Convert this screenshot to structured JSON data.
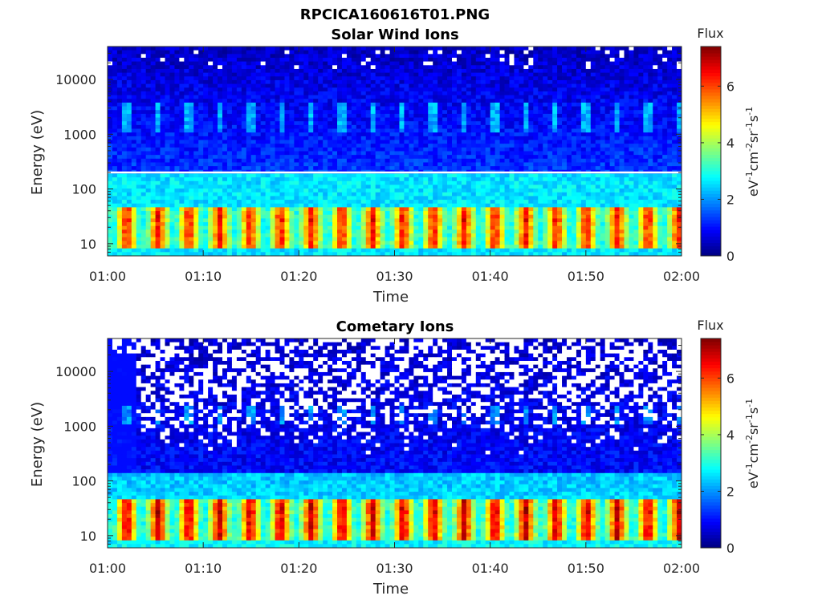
{
  "figure": {
    "title": "RPCICA160616T01.PNG"
  },
  "chart_data": [
    {
      "type": "heatmap",
      "title": "Solar Wind Ions",
      "xlabel": "Time",
      "ylabel": "Energy (eV)",
      "y_scale": "log",
      "ylim": [
        6,
        40000
      ],
      "x_ticks": [
        "01:00",
        "01:10",
        "01:20",
        "01:30",
        "01:40",
        "01:50",
        "02:00"
      ],
      "y_ticks": [
        "10",
        "100",
        "1000",
        "10000"
      ],
      "x_range": [
        "01:00",
        "02:00"
      ],
      "cycle_start_minutes": [
        1.7,
        5.0,
        8.2,
        11.4,
        14.6,
        17.8,
        21.0,
        24.2,
        27.4,
        30.6,
        33.8,
        37.0,
        40.2,
        43.4,
        46.6,
        49.8,
        53.0,
        56.2,
        59.4
      ],
      "colorbar": {
        "label": "Flux",
        "units": "eV-1cm-2sr-1s-1",
        "ticks": [
          "0",
          "2",
          "4",
          "6"
        ],
        "range": [
          0,
          7.4
        ],
        "colormap": "jet"
      },
      "features": {
        "low_energy_band_eV": [
          10,
          40
        ],
        "low_energy_peak_flux": 6.5,
        "mid_energy_bursts_eV": [
          1500,
          3000
        ],
        "mid_energy_burst_flux": 2.2,
        "background_flux_below_200eV": 2.6,
        "background_flux_above_200eV": 1.3,
        "white_line_eV": 200
      }
    },
    {
      "type": "heatmap",
      "title": "Cometary Ions",
      "xlabel": "Time",
      "ylabel": "Energy (eV)",
      "y_scale": "log",
      "ylim": [
        6,
        40000
      ],
      "x_ticks": [
        "01:00",
        "01:10",
        "01:20",
        "01:30",
        "01:40",
        "01:50",
        "02:00"
      ],
      "y_ticks": [
        "10",
        "100",
        "1000",
        "10000"
      ],
      "x_range": [
        "01:00",
        "02:00"
      ],
      "cycle_start_minutes": [
        1.7,
        5.0,
        8.2,
        11.4,
        14.6,
        17.8,
        21.0,
        24.2,
        27.4,
        30.6,
        33.8,
        37.0,
        40.2,
        43.4,
        46.6,
        49.8,
        53.0,
        56.2,
        59.4
      ],
      "colorbar": {
        "label": "Flux",
        "units": "eV-1cm-2sr-1s-1",
        "ticks": [
          "0",
          "2",
          "4",
          "6"
        ],
        "range": [
          0,
          7.4
        ],
        "colormap": "jet"
      },
      "features": {
        "low_energy_band_eV": [
          10,
          40
        ],
        "low_energy_peak_flux": 7.0,
        "mid_energy_bursts_eV": [
          1500,
          2000
        ],
        "mid_energy_burst_flux": 2.0,
        "background_flux_below_150eV": 2.6,
        "background_flux_above_300eV": 0.9,
        "empty_bin_fraction_high_energy": 0.45
      }
    }
  ],
  "colors": {
    "background": "#ffffff",
    "axis": "#262626",
    "empty_bin": "#ffffff"
  }
}
